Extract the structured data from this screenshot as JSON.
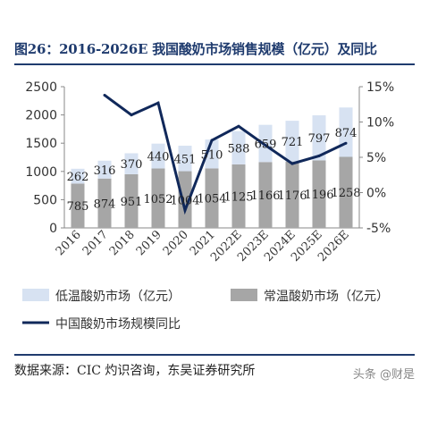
{
  "title": "图26：2016-2026E 我国酸奶市场销售规模（亿元）及同比",
  "source": "数据来源：CIC 灼识咨询，东吴证券研究所",
  "watermark": "头条 @财是",
  "colors": {
    "low_temp": "#d7e2f2",
    "room_temp": "#a6a6a6",
    "line": "#10285a",
    "title": "#1f3b6e"
  },
  "chart_data": {
    "type": "bar",
    "stacked": true,
    "categories": [
      "2016",
      "2017",
      "2018",
      "2019",
      "2020",
      "2021",
      "2022E",
      "2023E",
      "2024E",
      "2025E",
      "2026E"
    ],
    "series": [
      {
        "name": "常温酸奶市场（亿元）",
        "values": [
          785,
          874,
          951,
          1052,
          1004,
          1054,
          1125,
          1166,
          1176,
          1196,
          1258
        ],
        "labels": [
          "785",
          "874",
          "951",
          "1052",
          "1004",
          "1054",
          "1125",
          "1166",
          "1176",
          "1196",
          "1258"
        ]
      },
      {
        "name": "低温酸奶市场（亿元）",
        "values": [
          262,
          316,
          370,
          440,
          451,
          510,
          588,
          659,
          721,
          797,
          874
        ],
        "labels": [
          "262",
          "316",
          "370",
          "440",
          "451",
          "510",
          "588",
          "659",
          "721",
          "797",
          "874"
        ]
      },
      {
        "name": "中国酸奶市场规模同比",
        "type": "line",
        "axis": "right",
        "values": [
          null,
          13.8,
          11.0,
          12.7,
          -2.5,
          7.4,
          9.4,
          6.7,
          4.1,
          5.2,
          7.0
        ]
      }
    ],
    "ylim": [
      0,
      2500
    ],
    "yticks": [
      "0",
      "500",
      "1000",
      "1500",
      "2000",
      "2500"
    ],
    "y2lim": [
      -5,
      15
    ],
    "y2ticks": [
      "-5%",
      "0%",
      "5%",
      "10%",
      "15%"
    ],
    "legend_position": "bottom"
  }
}
